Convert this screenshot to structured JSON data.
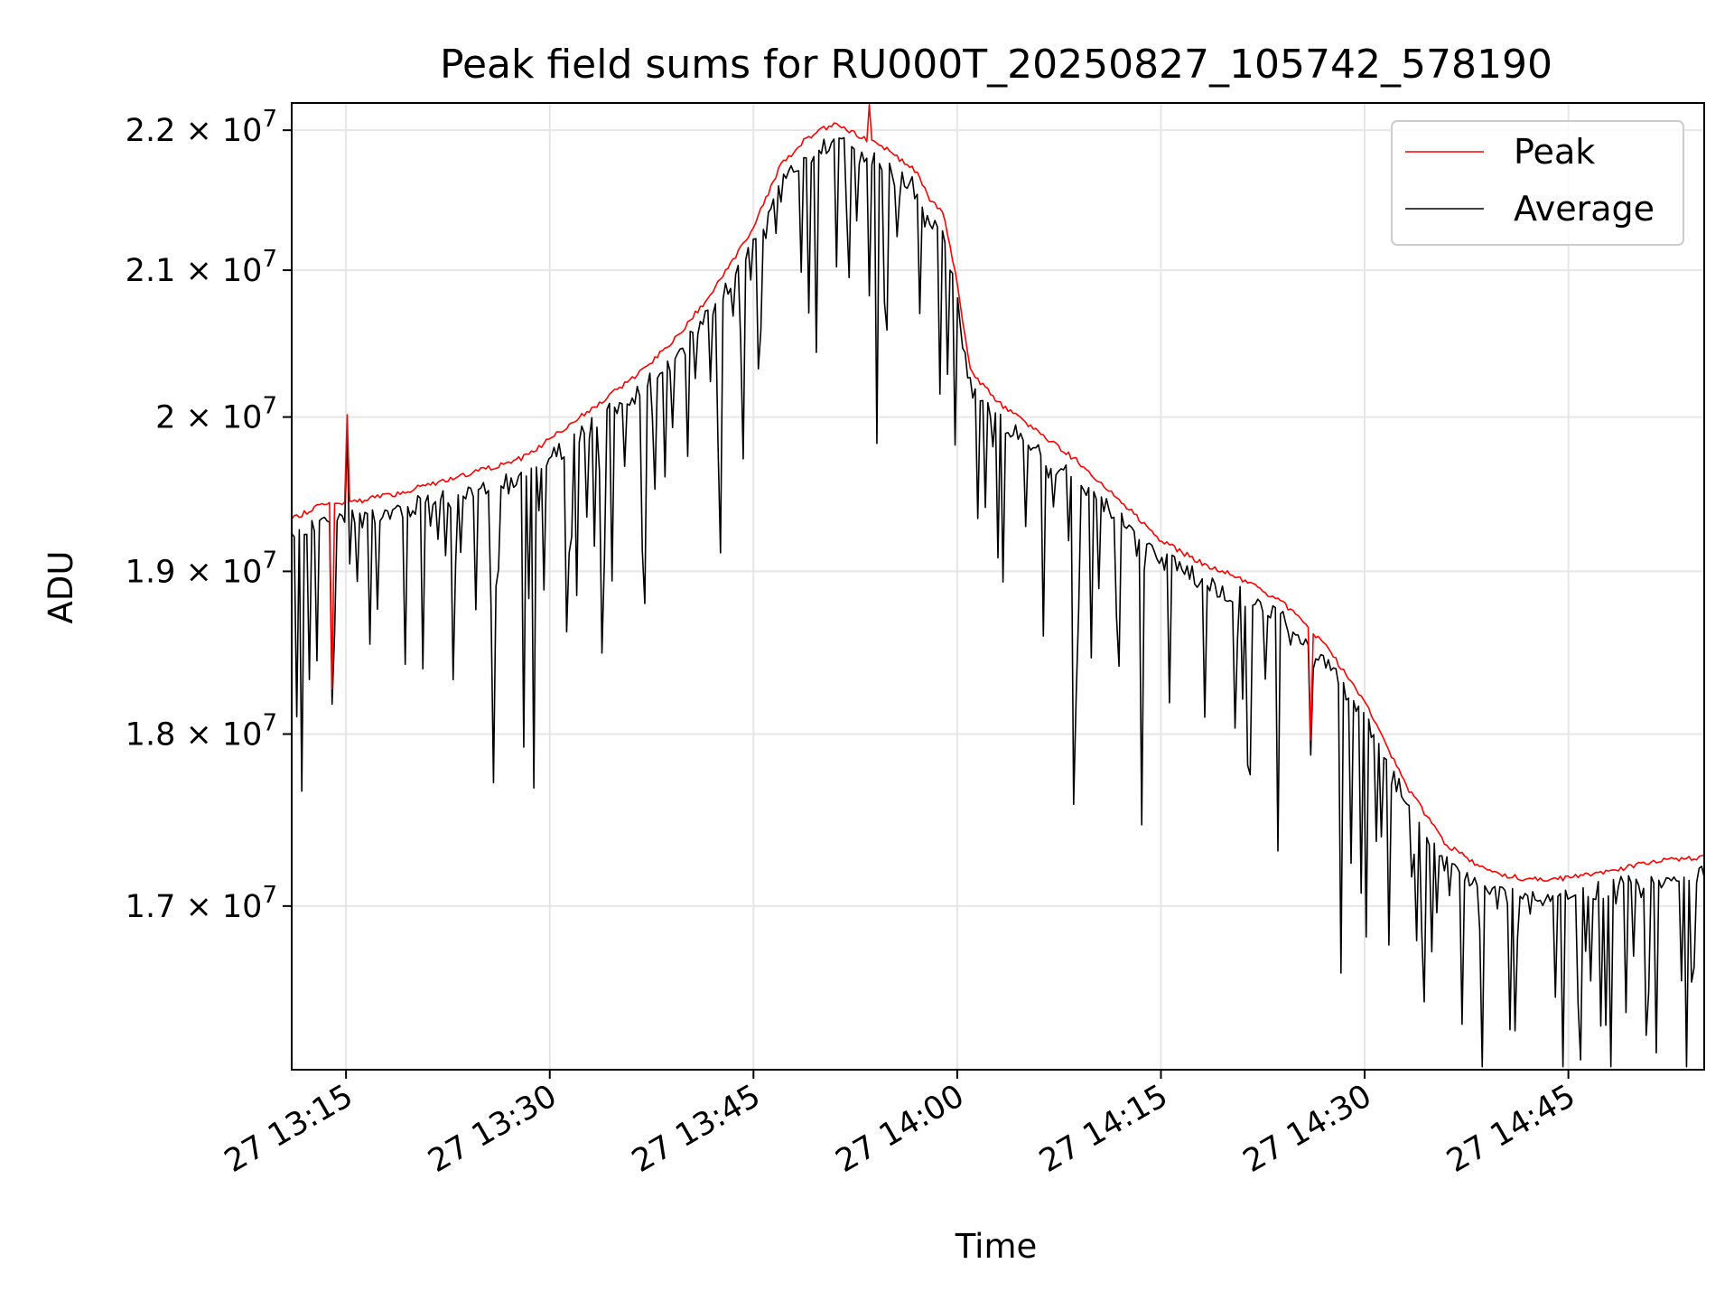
{
  "chart_data": {
    "type": "line",
    "title": "Peak field sums for RU000T_20250827_105742_578190",
    "xlabel": "Time",
    "ylabel": "ADU",
    "y_scale": "log",
    "xlim": [
      "27 13:11",
      "27 14:55"
    ],
    "ylim": [
      16100000,
      22200000
    ],
    "grid": true,
    "legend_position": "top-right",
    "x_ticks": [
      {
        "value": "27 13:15",
        "label": "27 13:15"
      },
      {
        "value": "27 13:30",
        "label": "27 13:30"
      },
      {
        "value": "27 13:45",
        "label": "27 13:45"
      },
      {
        "value": "27 14:00",
        "label": "27 14:00"
      },
      {
        "value": "27 14:15",
        "label": "27 14:15"
      },
      {
        "value": "27 14:30",
        "label": "27 14:30"
      },
      {
        "value": "27 14:45",
        "label": "27 14:45"
      }
    ],
    "y_ticks": [
      {
        "value": 17000000,
        "mantissa": "1.7",
        "base": "10",
        "exp": "7"
      },
      {
        "value": 18000000,
        "mantissa": "1.8",
        "base": "10",
        "exp": "7"
      },
      {
        "value": 19000000,
        "mantissa": "1.9",
        "base": "10",
        "exp": "7"
      },
      {
        "value": 20000000,
        "mantissa": "2",
        "base": "10",
        "exp": "7"
      },
      {
        "value": 21000000,
        "mantissa": "2.1",
        "base": "10",
        "exp": "7"
      },
      {
        "value": 22000000,
        "mantissa": "2.2",
        "base": "10",
        "exp": "7"
      }
    ],
    "series": [
      {
        "name": "Peak",
        "color": "#ff0000",
        "points": [
          [
            "13:11",
            19330000
          ],
          [
            "13:13",
            19420000
          ],
          [
            "13:16",
            19450000
          ],
          [
            "13:19",
            19500000
          ],
          [
            "13:22",
            19580000
          ],
          [
            "13:25",
            19650000
          ],
          [
            "13:28",
            19730000
          ],
          [
            "13:30",
            19850000
          ],
          [
            "13:33",
            20050000
          ],
          [
            "13:36",
            20250000
          ],
          [
            "13:39",
            20500000
          ],
          [
            "13:42",
            20850000
          ],
          [
            "13:45",
            21300000
          ],
          [
            "13:47",
            21750000
          ],
          [
            "13:49",
            21950000
          ],
          [
            "13:51",
            22050000
          ],
          [
            "13:53",
            21950000
          ],
          [
            "13:55",
            21850000
          ],
          [
            "13:57",
            21700000
          ],
          [
            "13:58",
            21500000
          ],
          [
            "13:59",
            21400000
          ],
          [
            "14:00",
            20900000
          ],
          [
            "14:01",
            20300000
          ],
          [
            "14:03",
            20100000
          ],
          [
            "14:06",
            19900000
          ],
          [
            "14:09",
            19700000
          ],
          [
            "14:12",
            19450000
          ],
          [
            "14:15",
            19200000
          ],
          [
            "14:18",
            19050000
          ],
          [
            "14:21",
            18950000
          ],
          [
            "14:24",
            18800000
          ],
          [
            "14:27",
            18550000
          ],
          [
            "14:30",
            18200000
          ],
          [
            "14:33",
            17700000
          ],
          [
            "14:36",
            17350000
          ],
          [
            "14:39",
            17200000
          ],
          [
            "14:42",
            17150000
          ],
          [
            "14:45",
            17160000
          ],
          [
            "14:48",
            17200000
          ],
          [
            "14:51",
            17250000
          ],
          [
            "14:55",
            17280000
          ]
        ]
      },
      {
        "name": "Average",
        "color": "#000000"
      }
    ]
  }
}
